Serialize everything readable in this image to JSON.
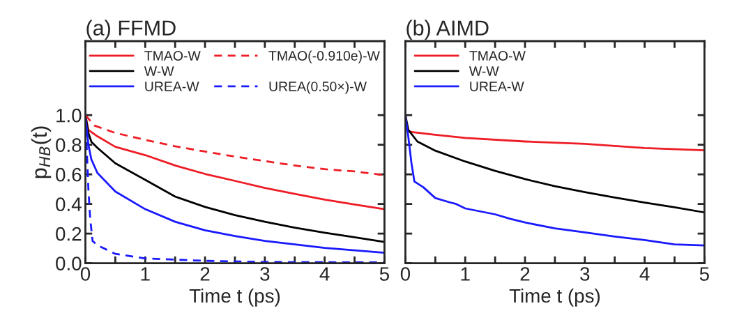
{
  "chart_data": [
    {
      "type": "line",
      "title": "(a) FFMD",
      "xlabel": "Time t (ps)",
      "ylabel": "p$_{HB}$(t)",
      "legend": "top",
      "line_style": "solid",
      "xlim": [
        0,
        5
      ],
      "xticks": [
        0,
        {
          "value": 0.5,
          "label": null
        },
        1,
        {
          "value": 1.5,
          "label": null
        },
        2,
        {
          "value": 2.5,
          "label": null
        },
        3,
        {
          "value": 3.5,
          "label": null
        },
        4,
        {
          "value": 4.5,
          "label": null
        },
        5
      ],
      "ylim": [
        0,
        1.5
      ],
      "yticks": [
        {
          "value": 0,
          "label": "0.0"
        },
        {
          "value": 0.2,
          "label": "0.2"
        },
        {
          "value": 0.4,
          "label": "0.4"
        },
        {
          "value": 0.6,
          "label": "0.6"
        },
        {
          "value": 0.8,
          "label": "0.8"
        },
        {
          "value": 1.0,
          "label": "1.0"
        }
      ],
      "series": [
        {
          "name": "TMAO-W",
          "color": "#ee1c25",
          "x": [
            0,
            0.05,
            0.2,
            0.5,
            1,
            1.5,
            2,
            2.5,
            3,
            3.5,
            4,
            4.5,
            5
          ],
          "values": [
            1.0,
            0.9,
            0.857,
            0.786,
            0.73,
            0.66,
            0.603,
            0.556,
            0.508,
            0.468,
            0.43,
            0.397,
            0.365
          ]
        },
        {
          "name": "W-W",
          "color": "#000000",
          "x": [
            0,
            0.05,
            0.1,
            0.2,
            0.5,
            1,
            1.5,
            2,
            2.5,
            3,
            3.5,
            4,
            4.5,
            5
          ],
          "values": [
            1.0,
            0.88,
            0.82,
            0.78,
            0.675,
            0.563,
            0.45,
            0.38,
            0.325,
            0.28,
            0.24,
            0.206,
            0.175,
            0.143
          ]
        },
        {
          "name": "UREA-W",
          "color": "#1a1aff",
          "x": [
            0,
            0.05,
            0.1,
            0.2,
            0.5,
            1,
            1.5,
            2,
            2.5,
            3,
            3.5,
            4,
            4.5,
            5
          ],
          "values": [
            1.0,
            0.8,
            0.7,
            0.61,
            0.484,
            0.365,
            0.28,
            0.222,
            0.183,
            0.15,
            0.127,
            0.103,
            0.087,
            0.07
          ]
        },
        {
          "name": "TMAO(-0.910e)-W",
          "color": "#ee1c25",
          "line_style": "dashed",
          "x": [
            0,
            0.15,
            0.5,
            1,
            1.5,
            2,
            2.5,
            3,
            3.5,
            4,
            4.5,
            5
          ],
          "values": [
            1.0,
            0.93,
            0.88,
            0.833,
            0.79,
            0.754,
            0.72,
            0.69,
            0.66,
            0.635,
            0.62,
            0.595
          ]
        },
        {
          "name": "UREA(0.50×)-W",
          "color": "#1a1aff",
          "line_style": "dashed",
          "x": [
            0,
            0.02,
            0.05,
            0.08,
            0.12,
            0.21,
            0.5,
            1,
            2,
            3,
            5
          ],
          "values": [
            1.0,
            0.8,
            0.5,
            0.3,
            0.15,
            0.12,
            0.063,
            0.032,
            0.016,
            0.008,
            0.005
          ]
        }
      ]
    },
    {
      "type": "line",
      "title": "(b) AIMD",
      "xlabel": "Time t (ps)",
      "legend": "top left",
      "line_style": "solid",
      "tick_labels": "x",
      "xlim": [
        0,
        5
      ],
      "xticks": [
        0,
        {
          "value": 0.5,
          "label": null
        },
        1,
        {
          "value": 1.5,
          "label": null
        },
        2,
        {
          "value": 2.5,
          "label": null
        },
        3,
        {
          "value": 3.5,
          "label": null
        },
        4,
        {
          "value": 4.5,
          "label": null
        },
        5
      ],
      "ylim": [
        0,
        1.5
      ],
      "yticks": [
        {
          "value": 0,
          "label": null
        },
        {
          "value": 0.2,
          "label": null
        },
        {
          "value": 0.4,
          "label": null
        },
        {
          "value": 0.6,
          "label": null
        },
        {
          "value": 0.8,
          "label": null
        },
        {
          "value": 1.0,
          "label": null
        }
      ],
      "series": [
        {
          "name": "TMAO-W",
          "color": "#ee1c25",
          "x": [
            0,
            0.03,
            0.1,
            0.5,
            1,
            2,
            3,
            4,
            5
          ],
          "values": [
            1.0,
            0.9,
            0.886,
            0.867,
            0.846,
            0.822,
            0.806,
            0.778,
            0.763
          ]
        },
        {
          "name": "W-W",
          "color": "#000000",
          "x": [
            0,
            0.05,
            0.2,
            0.5,
            1,
            1.5,
            2,
            2.5,
            3,
            3.5,
            4,
            4.5,
            5
          ],
          "values": [
            1.0,
            0.9,
            0.822,
            0.76,
            0.687,
            0.624,
            0.568,
            0.52,
            0.48,
            0.444,
            0.41,
            0.378,
            0.343
          ]
        },
        {
          "name": "UREA-W",
          "color": "#1a1aff",
          "x": [
            0,
            0.05,
            0.1,
            0.15,
            0.3,
            0.5,
            0.75,
            0.85,
            1,
            1.5,
            1.75,
            2,
            2.5,
            3,
            3.5,
            4,
            4.5,
            5
          ],
          "values": [
            1.0,
            0.85,
            0.68,
            0.552,
            0.513,
            0.44,
            0.41,
            0.4,
            0.37,
            0.33,
            0.3,
            0.275,
            0.235,
            0.208,
            0.18,
            0.156,
            0.127,
            0.12
          ]
        }
      ]
    }
  ]
}
